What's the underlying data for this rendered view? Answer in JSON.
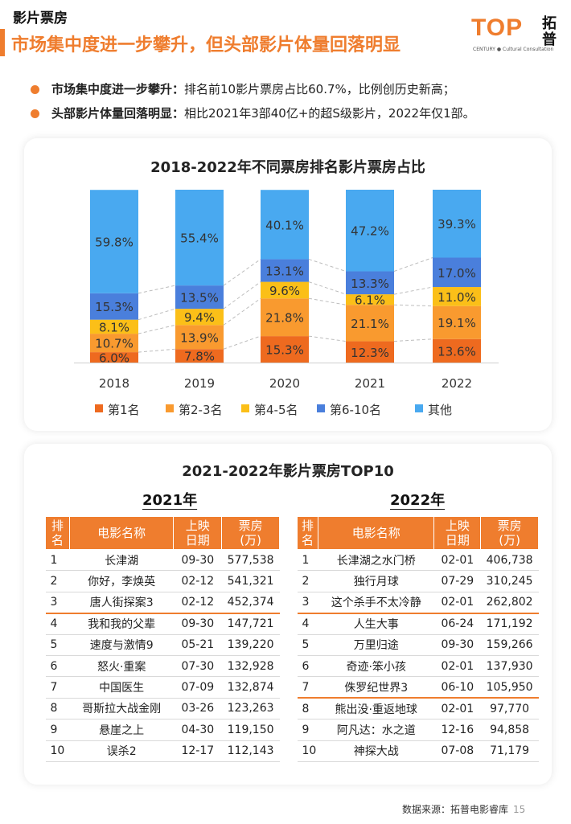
{
  "header": {
    "kicker": "影片票房",
    "title": "市场集中度进一步攀升，但头部影片体量回落明显",
    "logo_top": "TOP",
    "logo_sub": "CENTURY ● Cultural Consultation",
    "logo_cn": "拓普"
  },
  "bullets": [
    {
      "head": "市场集中度进一步攀升：",
      "text": "排名前10影片票房占比60.7%，比例创历史新高；"
    },
    {
      "head": "头部影片体量回落明显：",
      "text": "相比2021年3部40亿+的超S级影片，2022年仅1部。"
    }
  ],
  "colors": {
    "accent": "#ef7d2e",
    "rank1": "#ee6a1f",
    "rank2_3": "#f99a2f",
    "rank4_5": "#fbbf18",
    "rank6_10": "#4a7fdc",
    "other": "#49a9f0"
  },
  "chart_data": {
    "type": "bar",
    "stacked": true,
    "title": "2018-2022年不同票房排名影片票房占比",
    "categories": [
      "2018",
      "2019",
      "2020",
      "2021",
      "2022"
    ],
    "series": [
      {
        "name": "第1名",
        "values": [
          6.0,
          7.8,
          15.3,
          12.3,
          13.6
        ],
        "labels": [
          "6.0%",
          "7.8%",
          "15.3%",
          "12.3%",
          "13.6%"
        ]
      },
      {
        "name": "第2-3名",
        "values": [
          10.7,
          13.9,
          21.8,
          21.1,
          19.1
        ],
        "labels": [
          "10.7%",
          "13.9%",
          "21.8%",
          "21.1%",
          "19.1%"
        ]
      },
      {
        "name": "第4-5名",
        "values": [
          8.1,
          9.4,
          9.6,
          6.1,
          11.0
        ],
        "labels": [
          "8.1%",
          "9.4%",
          "9.6%",
          "6.1%",
          "11.0%"
        ]
      },
      {
        "name": "第6-10名",
        "values": [
          15.3,
          13.5,
          13.1,
          13.3,
          17.0
        ],
        "labels": [
          "15.3%",
          "13.5%",
          "13.1%",
          "13.3%",
          "17.0%"
        ]
      },
      {
        "name": "其他",
        "values": [
          59.8,
          55.4,
          40.1,
          47.2,
          39.3
        ],
        "labels": [
          "59.8%",
          "55.4%",
          "40.1%",
          "47.2%",
          "39.3%"
        ]
      }
    ],
    "ylim": [
      0,
      100
    ],
    "legend": "bottom",
    "grid": false
  },
  "top10": {
    "title": "2021-2022年影片票房TOP10",
    "headers": {
      "rank": [
        "排",
        "名"
      ],
      "name": "电影名称",
      "date": [
        "上映",
        "日期"
      ],
      "box": [
        "票房",
        "(万)"
      ]
    },
    "y2021": {
      "label": "2021年",
      "rows": [
        {
          "rank": "1",
          "name": "长津湖",
          "date": "09-30",
          "box": "577,538"
        },
        {
          "rank": "2",
          "name": "你好，李焕英",
          "date": "02-12",
          "box": "541,321"
        },
        {
          "rank": "3",
          "name": "唐人街探案3",
          "date": "02-12",
          "box": "452,374"
        },
        {
          "rank": "4",
          "name": "我和我的父辈",
          "date": "09-30",
          "box": "147,721"
        },
        {
          "rank": "5",
          "name": "速度与激情9",
          "date": "05-21",
          "box": "139,220"
        },
        {
          "rank": "6",
          "name": "怒火·重案",
          "date": "07-30",
          "box": "132,928"
        },
        {
          "rank": "7",
          "name": "中国医生",
          "date": "07-09",
          "box": "132,874"
        },
        {
          "rank": "8",
          "name": "哥斯拉大战金刚",
          "date": "03-26",
          "box": "123,263"
        },
        {
          "rank": "9",
          "name": "悬崖之上",
          "date": "04-30",
          "box": "119,150"
        },
        {
          "rank": "10",
          "name": "误杀2",
          "date": "12-17",
          "box": "112,143"
        }
      ]
    },
    "y2022": {
      "label": "2022年",
      "rows": [
        {
          "rank": "1",
          "name": "长津湖之水门桥",
          "date": "02-01",
          "box": "406,738"
        },
        {
          "rank": "2",
          "name": "独行月球",
          "date": "07-29",
          "box": "310,245"
        },
        {
          "rank": "3",
          "name": "这个杀手不太冷静",
          "date": "02-01",
          "box": "262,802"
        },
        {
          "rank": "4",
          "name": "人生大事",
          "date": "06-24",
          "box": "171,192"
        },
        {
          "rank": "5",
          "name": "万里归途",
          "date": "09-30",
          "box": "159,266"
        },
        {
          "rank": "6",
          "name": "奇迹·笨小孩",
          "date": "02-01",
          "box": "137,930"
        },
        {
          "rank": "7",
          "name": "侏罗纪世界3",
          "date": "06-10",
          "box": "105,950"
        },
        {
          "rank": "8",
          "name": "熊出没·重返地球",
          "date": "02-01",
          "box": "97,770"
        },
        {
          "rank": "9",
          "name": "阿凡达：水之道",
          "date": "12-16",
          "box": "94,858"
        },
        {
          "rank": "10",
          "name": "神探大战",
          "date": "07-08",
          "box": "71,179"
        }
      ]
    }
  },
  "footer": {
    "source": "数据来源：拓普电影睿库",
    "page": "15"
  }
}
